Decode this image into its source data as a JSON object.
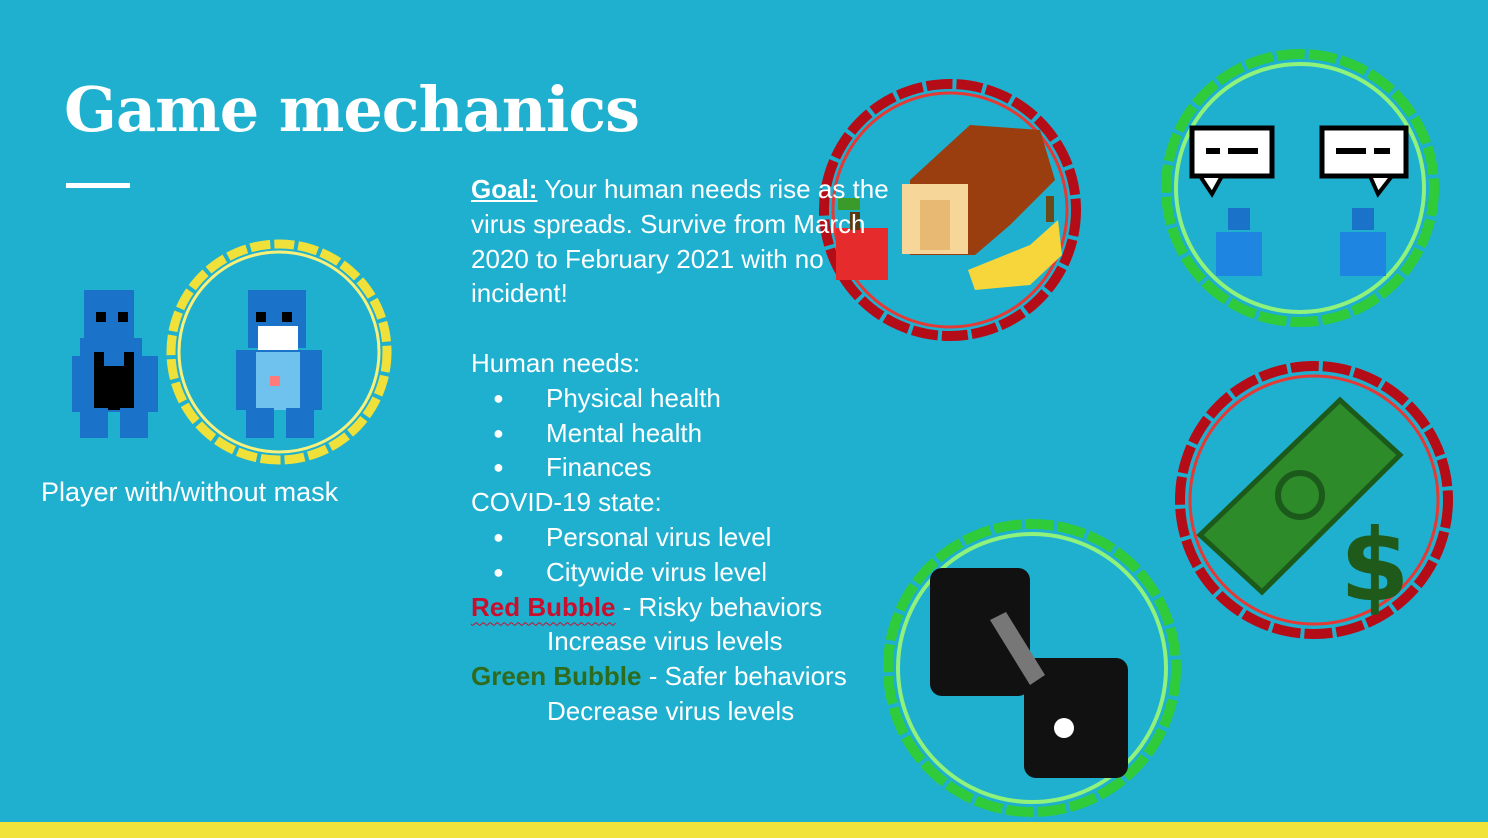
{
  "slide": {
    "title": "Game mechanics",
    "player_caption": "Player with/without mask",
    "goal_label": "Goal:",
    "goal_text": " Your human needs rise as the virus spreads. Survive from March 2020 to February 2021 with no incident!",
    "human_needs_heading": "Human needs:",
    "human_needs": [
      "Physical health",
      "Mental health",
      "Finances"
    ],
    "covid_heading": "COVID-19 state:",
    "covid_items": [
      "Personal virus level",
      "Citywide virus level"
    ],
    "red_bubble_label": "Red Bubble",
    "red_bubble_desc": " - Risky behaviors",
    "red_bubble_effect": "Increase virus levels",
    "green_bubble_label": "Green Bubble",
    "green_bubble_desc": "  - Safer behaviors",
    "green_bubble_effect": "Decrease virus levels"
  },
  "icons": [
    "player-no-mask-icon",
    "player-mask-icon",
    "food-icon",
    "social-chat-icon",
    "money-icon",
    "dumbbell-icon"
  ],
  "colors": {
    "background": "#1fb0cf",
    "accent_yellow": "#f2e33a",
    "red_bubble": "#c8102e",
    "green_bubble": "#2f6b1f",
    "player_blue": "#1a73c9"
  }
}
